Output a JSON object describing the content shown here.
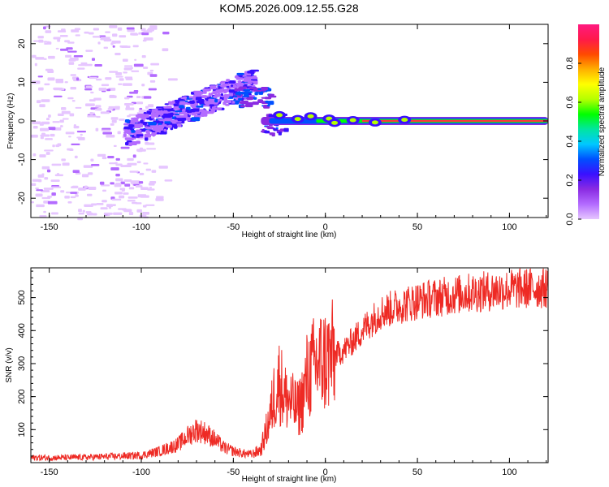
{
  "title": "KOM5.2026.009.12.55.G28",
  "chart_data": [
    {
      "type": "heatmap",
      "name": "spectrogram",
      "xlabel": "Height of straight line (km)",
      "ylabel": "Frequency (Hz)",
      "xlim": [
        -160,
        121
      ],
      "ylim": [
        -25,
        25
      ],
      "xticks": [
        -150,
        -100,
        -50,
        0,
        50,
        100
      ],
      "yticks": [
        -20,
        -10,
        0,
        10,
        20
      ],
      "colorbar": {
        "label": "Normalized spectral amplitude",
        "range": [
          0,
          1
        ],
        "ticks": [
          0.0,
          0.2,
          0.4,
          0.6,
          0.8
        ],
        "tick_labels": [
          "0.0",
          "0.2",
          "0.4",
          "0.6",
          "0.8"
        ],
        "colormap": [
          "#e6c6ff",
          "#b36bff",
          "#8a2be2",
          "#3a10ff",
          "#0050ff",
          "#00c8ff",
          "#00e6a0",
          "#00ff00",
          "#b4ff00",
          "#ffff00",
          "#ffb000",
          "#ff4a00",
          "#ff1a4a",
          "#ff1a80"
        ]
      },
      "features": [
        {
          "name": "sparse noise",
          "x_range": [
            -160,
            -95
          ],
          "y_range": [
            -25,
            25
          ],
          "amplitude": 0.05
        },
        {
          "name": "rising streak",
          "x_range": [
            -110,
            -40
          ],
          "y_range": [
            -3,
            15
          ],
          "amplitude": 0.3
        },
        {
          "name": "upper blob",
          "x_range": [
            -50,
            -30
          ],
          "y_range": [
            4,
            9
          ],
          "amplitude": 0.35
        },
        {
          "name": "tone near 0 Hz",
          "x_range": [
            -35,
            121
          ],
          "y_range": [
            -1,
            1
          ],
          "amplitude": 0.95
        }
      ]
    },
    {
      "type": "line",
      "name": "snr",
      "xlabel": "Height of straight line (km)",
      "ylabel": "SNR (v/v)",
      "xlim": [
        -160,
        121
      ],
      "ylim": [
        0,
        590
      ],
      "xticks": [
        -150,
        -100,
        -50,
        0,
        50,
        100
      ],
      "yticks": [
        100,
        200,
        300,
        400,
        500
      ],
      "color": "#ee2a24",
      "series": [
        {
          "name": "SNR",
          "x": [
            -160,
            -140,
            -120,
            -100,
            -90,
            -80,
            -75,
            -70,
            -65,
            -60,
            -55,
            -50,
            -45,
            -40,
            -35,
            -30,
            -28,
            -25,
            -22,
            -20,
            -15,
            -12,
            -10,
            -5,
            0,
            5,
            10,
            15,
            20,
            25,
            30,
            40,
            50,
            60,
            70,
            80,
            90,
            100,
            110,
            121
          ],
          "y": [
            15,
            15,
            18,
            22,
            35,
            55,
            80,
            100,
            90,
            70,
            45,
            35,
            28,
            25,
            40,
            140,
            200,
            250,
            200,
            190,
            160,
            200,
            260,
            300,
            310,
            325,
            340,
            370,
            400,
            430,
            455,
            475,
            490,
            500,
            508,
            515,
            520,
            525,
            528,
            530
          ]
        }
      ]
    }
  ]
}
